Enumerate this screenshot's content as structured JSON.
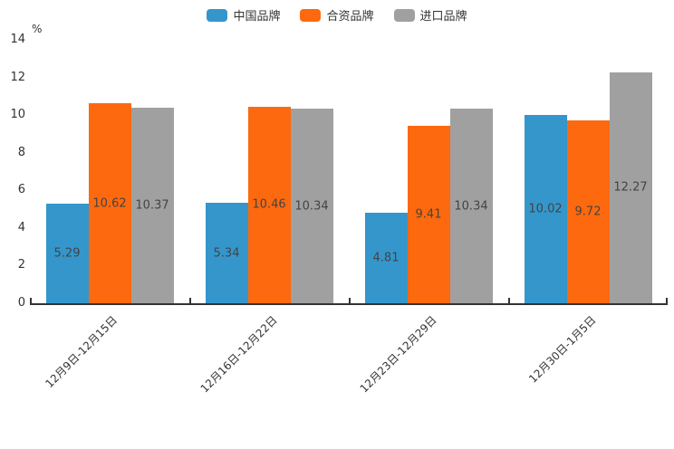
{
  "chart_data": {
    "type": "bar",
    "categories": [
      "12月9日-12月15日",
      "12月16日-12月22日",
      "12月23日-12月29日",
      "12月30日-1月5日"
    ],
    "series": [
      {
        "name": "中国品牌",
        "color": "#3496cb",
        "values": [
          5.29,
          5.34,
          4.81,
          10.02
        ]
      },
      {
        "name": "合资品牌",
        "color": "#fd690e",
        "values": [
          10.62,
          10.46,
          9.41,
          9.72
        ]
      },
      {
        "name": "进口品牌",
        "color": "#a0a0a0",
        "values": [
          10.37,
          10.34,
          10.34,
          12.27
        ]
      }
    ],
    "title": "",
    "xlabel": "",
    "ylabel": "%",
    "ylim": [
      0,
      14
    ],
    "yticks": [
      0,
      2,
      4,
      6,
      8,
      10,
      12,
      14
    ],
    "grid": false,
    "legend_position": "top",
    "bar_label_position": "center-inside",
    "axis_color": "#333333",
    "label_color": "#444444"
  }
}
